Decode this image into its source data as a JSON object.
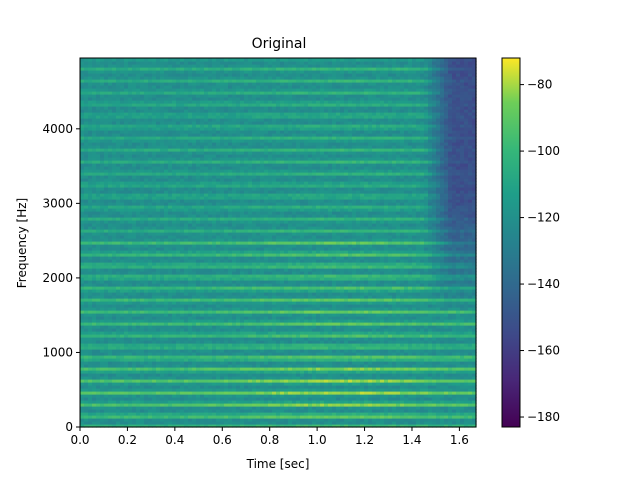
{
  "chart_data": {
    "type": "heatmap",
    "title": "Original",
    "xlabel": "Time [sec]",
    "ylabel": "Frequency [Hz]",
    "xlim": [
      0.0,
      1.67
    ],
    "ylim": [
      0,
      4950
    ],
    "x_ticks": [
      "0.0",
      "0.2",
      "0.4",
      "0.6",
      "0.8",
      "1.0",
      "1.2",
      "1.4",
      "1.6"
    ],
    "y_ticks": [
      "0",
      "1000",
      "2000",
      "3000",
      "4000"
    ],
    "colorbar": {
      "colormap": "viridis",
      "range": [
        -183,
        -72
      ],
      "ticks": [
        "−80",
        "−100",
        "−120",
        "−140",
        "−160",
        "−180"
      ]
    },
    "harmonic_spacing_hz": 155,
    "harmonic_peak_levels_db": {
      "low_harmonics_0_to_1000hz": -80,
      "mid_harmonics_1000_to_2500hz": -88,
      "high_harmonics_2500_to_5000hz": -100,
      "between_harmonics": -122,
      "after_1.5s_upper_band": -158
    },
    "grid": false,
    "legend": "none"
  }
}
